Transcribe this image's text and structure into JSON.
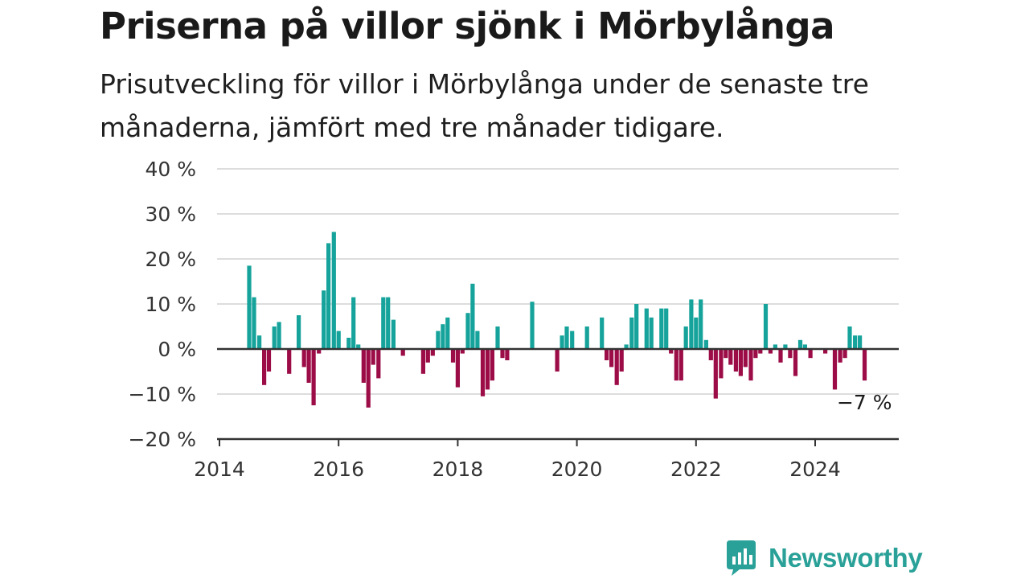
{
  "header": {
    "title": "Priserna på villor sjönk i Mörbylånga",
    "subtitle": "Prisutveckling för villor i Mörbylånga under de senaste tre månaderna, jämfört med tre månader tidigare."
  },
  "brand": {
    "name": "Newsworthy",
    "icon": "newsworthy-logo-icon"
  },
  "colors": {
    "positive": "#16a39b",
    "negative": "#9c0c47",
    "grid": "#dddddd",
    "axis": "#333333"
  },
  "chart_data": {
    "type": "bar",
    "ylim": [
      -20,
      40
    ],
    "y_ticks": [
      40,
      30,
      20,
      10,
      0,
      -10,
      -20
    ],
    "y_tick_labels": [
      "40 %",
      "30 %",
      "20 %",
      "10 %",
      "0 %",
      "−10 %",
      "−20 %"
    ],
    "x_ticks": [
      2014,
      2016,
      2018,
      2020,
      2022,
      2024
    ],
    "x_tick_labels": [
      "2014",
      "2016",
      "2018",
      "2020",
      "2022",
      "2024"
    ],
    "xlim": [
      2014,
      2025.5
    ],
    "grid": "horizontal",
    "annotation": {
      "text": "−7 %",
      "x": 2024.83,
      "y": -7
    },
    "x": [
      2014.5,
      2014.58,
      2014.67,
      2014.75,
      2014.83,
      2014.92,
      2015.0,
      2015.08,
      2015.17,
      2015.25,
      2015.33,
      2015.42,
      2015.5,
      2015.58,
      2015.67,
      2015.75,
      2015.83,
      2015.92,
      2016.0,
      2016.08,
      2016.17,
      2016.25,
      2016.33,
      2016.42,
      2016.5,
      2016.58,
      2016.67,
      2016.75,
      2016.83,
      2016.92,
      2017.0,
      2017.08,
      2017.17,
      2017.25,
      2017.33,
      2017.42,
      2017.5,
      2017.58,
      2017.67,
      2017.75,
      2017.83,
      2017.92,
      2018.0,
      2018.08,
      2018.17,
      2018.25,
      2018.33,
      2018.42,
      2018.5,
      2018.58,
      2018.67,
      2018.75,
      2018.83,
      2018.92,
      2019.0,
      2019.08,
      2019.17,
      2019.25,
      2019.33,
      2019.42,
      2019.5,
      2019.58,
      2019.67,
      2019.75,
      2019.83,
      2019.92,
      2020.0,
      2020.08,
      2020.17,
      2020.25,
      2020.33,
      2020.42,
      2020.5,
      2020.58,
      2020.67,
      2020.75,
      2020.83,
      2020.92,
      2021.0,
      2021.08,
      2021.17,
      2021.25,
      2021.33,
      2021.42,
      2021.5,
      2021.58,
      2021.67,
      2021.75,
      2021.83,
      2021.92,
      2022.0,
      2022.08,
      2022.17,
      2022.25,
      2022.33,
      2022.42,
      2022.5,
      2022.58,
      2022.67,
      2022.75,
      2022.83,
      2022.92,
      2023.0,
      2023.08,
      2023.17,
      2023.25,
      2023.33,
      2023.42,
      2023.5,
      2023.58,
      2023.67,
      2023.75,
      2023.83,
      2023.92,
      2024.0,
      2024.08,
      2024.17,
      2024.25,
      2024.33,
      2024.42,
      2024.5,
      2024.58,
      2024.67,
      2024.75,
      2024.83
    ],
    "values": [
      18.5,
      11.5,
      3,
      -8,
      -5,
      5,
      6,
      0,
      -5.5,
      0,
      7.5,
      -4,
      -7.5,
      -12.5,
      -1,
      13,
      23.5,
      26,
      4,
      0,
      2.5,
      11.5,
      1,
      -7.5,
      -13,
      -3.5,
      -6.5,
      11.5,
      11.5,
      6.5,
      0,
      -1.5,
      0,
      0,
      0,
      -5.5,
      -3,
      -1.5,
      4,
      5.5,
      7,
      -3,
      -8.5,
      -1,
      8,
      14.5,
      4,
      -10.5,
      -9,
      -7,
      5,
      -2,
      -2.5,
      0,
      0,
      0,
      0,
      10.5,
      0,
      0,
      0,
      0,
      -5,
      3,
      5,
      4,
      0,
      0,
      5,
      0,
      0,
      7,
      -2.5,
      -4,
      -8,
      -5,
      1,
      7,
      10,
      0,
      9,
      7,
      0,
      9,
      9,
      -1,
      -7,
      -7,
      5,
      11,
      7,
      11,
      2,
      -2.5,
      -11,
      -6.5,
      -2,
      -3.5,
      -5,
      -6,
      -4,
      -7,
      -2,
      -1,
      10,
      -1,
      1,
      -3,
      1,
      -2,
      -6,
      2,
      1,
      -2,
      0,
      0,
      -1,
      0,
      -9,
      -3,
      -2,
      5,
      3,
      3,
      -7
    ]
  }
}
